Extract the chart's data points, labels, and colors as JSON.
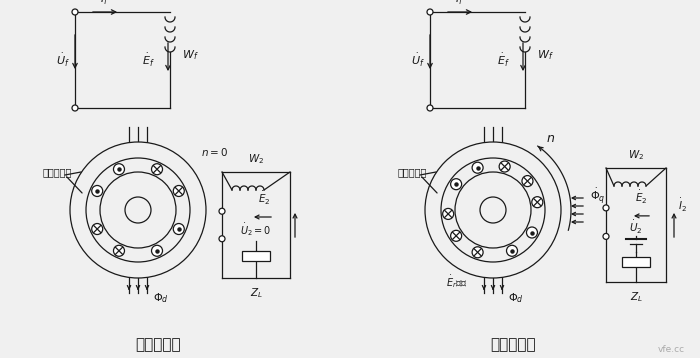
{
  "bg_color": "#f0f0f0",
  "line_color": "#1a1a1a",
  "title_left": "转子静止时",
  "title_right": "转子旋转时",
  "watermark": "vfe.cc"
}
